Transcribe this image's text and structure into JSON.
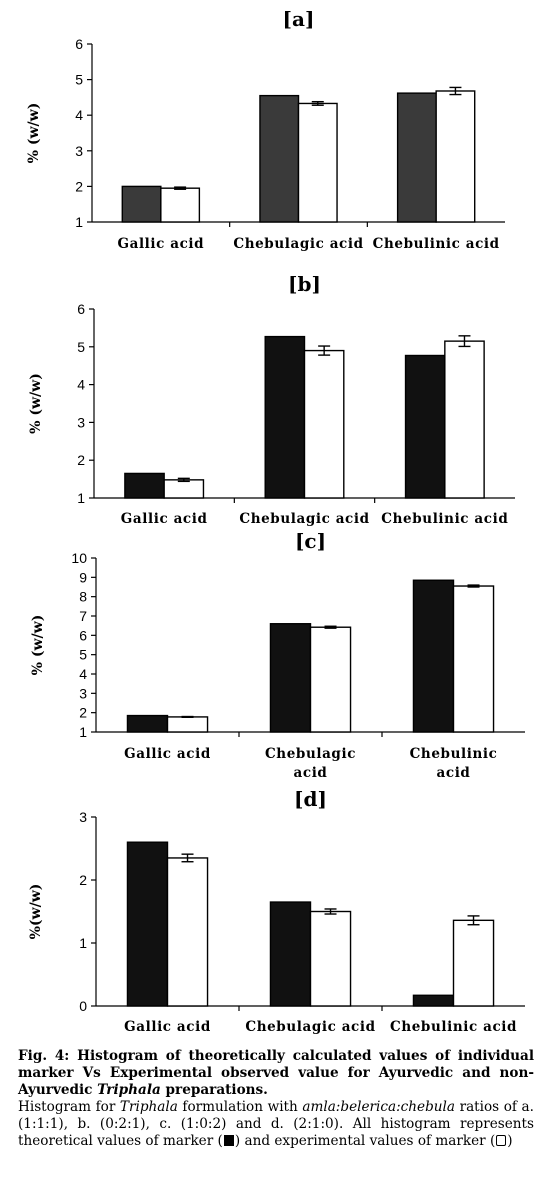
{
  "chart_data": [
    {
      "type": "bar",
      "panel": "[a]",
      "categories": [
        "Gallic acid",
        "Chebulagic acid",
        "Chebulinic acid"
      ],
      "ylabel": "% (w/w)",
      "ylim": [
        1,
        6
      ],
      "yticks": [
        1,
        2,
        3,
        4,
        5,
        6
      ],
      "grid": false,
      "series": [
        {
          "values": [
            2.0,
            4.55,
            4.62
          ],
          "color": "#3a3a3a",
          "style": "filled"
        },
        {
          "values": [
            1.95,
            4.33,
            4.68
          ],
          "errors": [
            0.03,
            0.05,
            0.1
          ],
          "color": "#ffffff",
          "style": "open"
        }
      ]
    },
    {
      "type": "bar",
      "panel": "[b]",
      "categories": [
        "Gallic acid",
        "Chebulagic acid",
        "Chebulinic acid"
      ],
      "ylabel": "% (w/w)",
      "ylim": [
        1,
        6
      ],
      "yticks": [
        1,
        2,
        3,
        4,
        5,
        6
      ],
      "grid": false,
      "series": [
        {
          "values": [
            1.65,
            5.27,
            4.77
          ],
          "color": "#111111",
          "style": "filled"
        },
        {
          "values": [
            1.48,
            4.9,
            5.15
          ],
          "errors": [
            0.04,
            0.12,
            0.14
          ],
          "color": "#ffffff",
          "style": "open"
        }
      ]
    },
    {
      "type": "bar",
      "panel": "[c]",
      "categories": [
        [
          "Gallic acid"
        ],
        [
          "Chebulagic",
          "acid"
        ],
        [
          "Chebulinic",
          "acid"
        ]
      ],
      "ylabel": "% (w/w)",
      "ylim": [
        1,
        10
      ],
      "yticks": [
        1,
        2,
        3,
        4,
        5,
        6,
        7,
        8,
        9,
        10
      ],
      "grid": false,
      "series": [
        {
          "values": [
            1.85,
            6.6,
            8.85
          ],
          "color": "#111111",
          "style": "filled"
        },
        {
          "values": [
            1.78,
            6.42,
            8.55
          ],
          "errors": [
            0.02,
            0.05,
            0.05
          ],
          "color": "#ffffff",
          "style": "open"
        }
      ]
    },
    {
      "type": "bar",
      "panel": "[d]",
      "categories": [
        "Gallic acid",
        "Chebulagic acid",
        "Chebulinic acid"
      ],
      "ylabel": "%(w/w)",
      "ylim": [
        0,
        3
      ],
      "yticks": [
        0,
        1,
        2,
        3
      ],
      "grid": false,
      "series": [
        {
          "values": [
            2.6,
            1.65,
            0.17
          ],
          "color": "#111111",
          "style": "filled"
        },
        {
          "values": [
            2.35,
            1.5,
            1.36
          ],
          "errors": [
            0.06,
            0.04,
            0.07
          ],
          "color": "#ffffff",
          "style": "open"
        }
      ]
    }
  ],
  "caption": {
    "line1": "Fig. 4: Histogram of theoretically calculated values of individual marker Vs Experimental observed value for Ayurvedic and non-Ayurvedic ",
    "line1_italic": "Triphala",
    "line1_end": " preparations.",
    "line2_start": "Histogram for ",
    "line2_italic1": "Triphala",
    "line2_mid": " formulation with ",
    "line2_italic2": "amla:belerica:chebula",
    "line2_rest": " ratios of a. (1:1:1), b. (0:2:1), c. (1:0:2) and d. (2:1:0). All histogram represents theoretical values of marker (",
    "line2_mid2": ") and experimental values of marker (",
    "line2_end": ")"
  }
}
